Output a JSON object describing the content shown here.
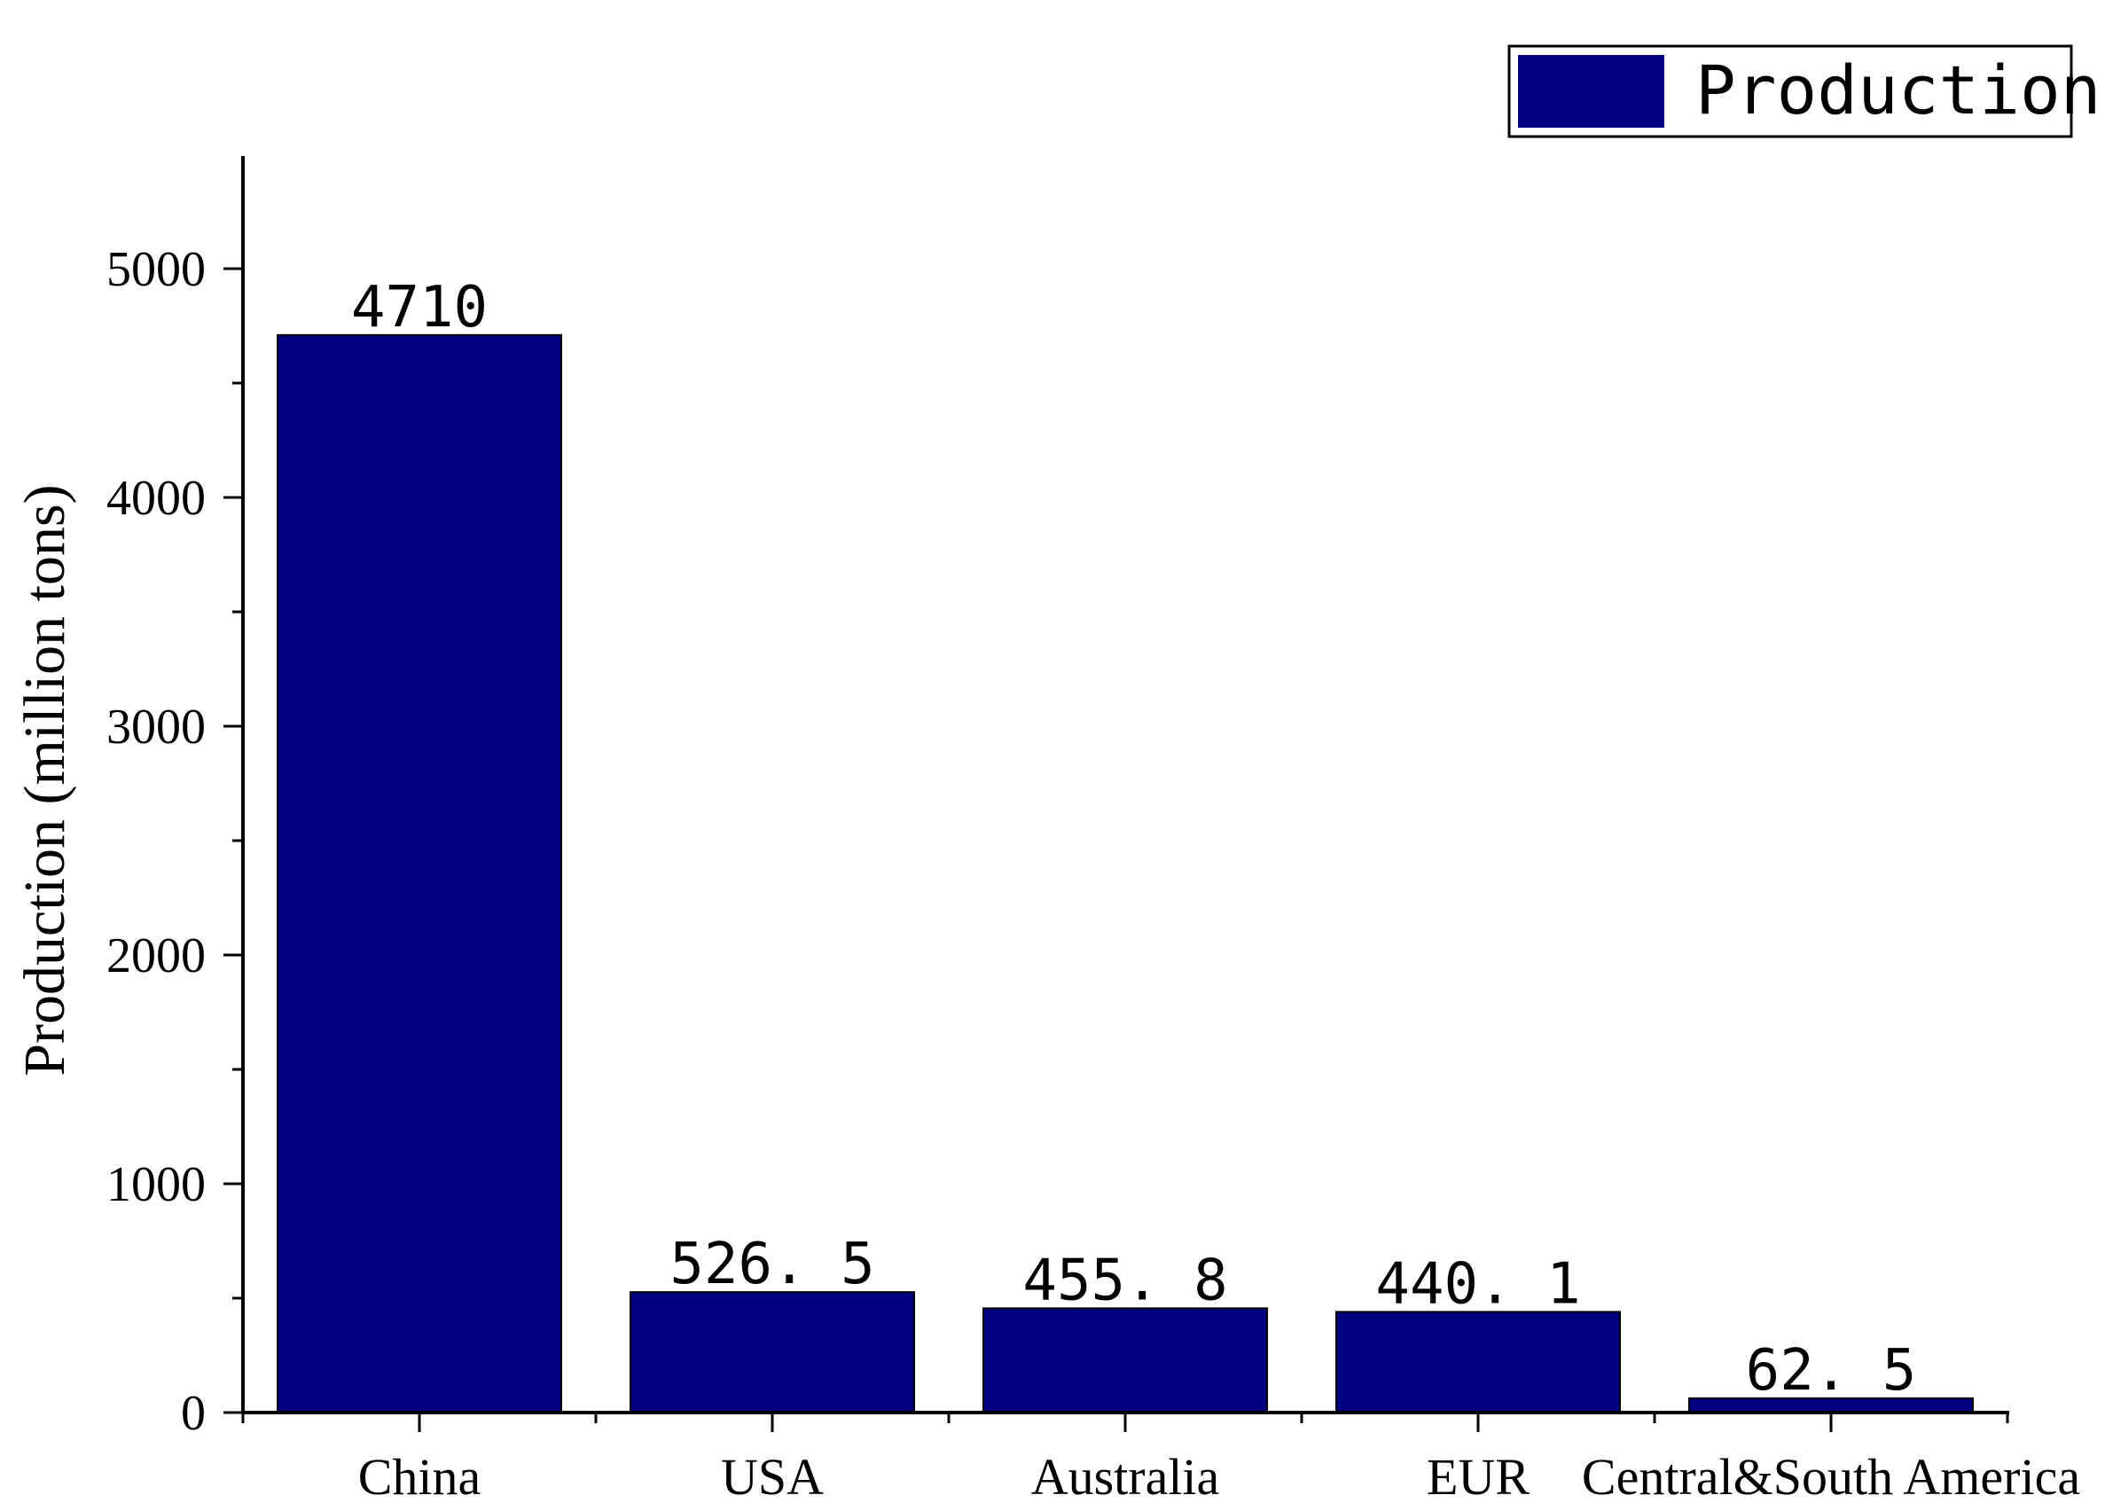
{
  "chart_data": {
    "type": "bar",
    "categories": [
      "China",
      "USA",
      "Australia",
      "EUR",
      "Central&South America"
    ],
    "series": [
      {
        "name": "Production",
        "values": [
          4710,
          526.5,
          455.8,
          440.1,
          62.5
        ],
        "value_labels": [
          "4710",
          "526. 5",
          "455. 8",
          "440. 1",
          "62. 5"
        ],
        "color": "#000080"
      }
    ],
    "title": "",
    "xlabel": "",
    "ylabel": "Production (million tons)",
    "ylim": [
      0,
      5500
    ],
    "yticks": [
      0,
      1000,
      2000,
      3000,
      4000,
      5000
    ],
    "grid": false,
    "legend_position": "top-right"
  }
}
